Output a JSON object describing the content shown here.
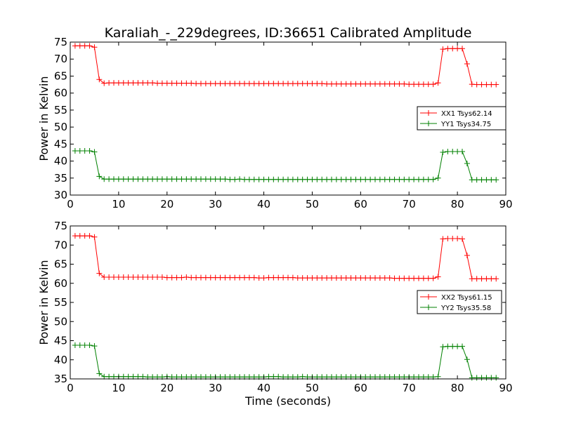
{
  "figure": {
    "title": "Karaliah_-_229degrees, ID:36651 Calibrated Amplitude",
    "xlabel": "Time (seconds)"
  },
  "chart_data": [
    {
      "type": "line",
      "ylabel": "Power in Kelvin",
      "xlabel": "",
      "xlim": [
        0,
        90
      ],
      "ylim": [
        30,
        75
      ],
      "xticks": [
        0,
        10,
        20,
        30,
        40,
        50,
        60,
        70,
        80,
        90
      ],
      "yticks": [
        30,
        35,
        40,
        45,
        50,
        55,
        60,
        65,
        70,
        75
      ],
      "grid": false,
      "legend_position": "center-right",
      "x": [
        1,
        2,
        3,
        4,
        5,
        6,
        7,
        8,
        9,
        10,
        11,
        12,
        13,
        14,
        15,
        16,
        17,
        18,
        19,
        20,
        21,
        22,
        23,
        24,
        25,
        26,
        27,
        28,
        29,
        30,
        31,
        32,
        33,
        34,
        35,
        36,
        37,
        38,
        39,
        40,
        41,
        42,
        43,
        44,
        45,
        46,
        47,
        48,
        49,
        50,
        51,
        52,
        53,
        54,
        55,
        56,
        57,
        58,
        59,
        60,
        61,
        62,
        63,
        64,
        65,
        66,
        67,
        68,
        69,
        70,
        71,
        72,
        73,
        74,
        75,
        76,
        77,
        78,
        79,
        80,
        81,
        82,
        83,
        84,
        85,
        86,
        87,
        88
      ],
      "series": [
        {
          "name": "XX1 Tsys62.14",
          "color": "#ff0000",
          "values": [
            73.9,
            73.9,
            73.9,
            73.9,
            73.5,
            64.0,
            62.9,
            63.0,
            63.0,
            63.0,
            63.0,
            63.0,
            63.0,
            63.0,
            63.0,
            63.0,
            63.0,
            62.9,
            62.9,
            62.9,
            62.9,
            62.9,
            62.9,
            62.9,
            62.9,
            62.8,
            62.8,
            62.8,
            62.8,
            62.8,
            62.8,
            62.8,
            62.8,
            62.8,
            62.8,
            62.8,
            62.8,
            62.8,
            62.8,
            62.8,
            62.8,
            62.8,
            62.8,
            62.8,
            62.8,
            62.8,
            62.8,
            62.8,
            62.8,
            62.8,
            62.8,
            62.8,
            62.7,
            62.7,
            62.7,
            62.7,
            62.7,
            62.7,
            62.7,
            62.7,
            62.7,
            62.7,
            62.7,
            62.7,
            62.7,
            62.7,
            62.7,
            62.7,
            62.7,
            62.6,
            62.6,
            62.6,
            62.6,
            62.6,
            62.6,
            63.0,
            72.9,
            73.1,
            73.1,
            73.1,
            73.1,
            68.6,
            62.6,
            62.5,
            62.5,
            62.5,
            62.5,
            62.5
          ]
        },
        {
          "name": "YY1 Tsys34.75",
          "color": "#008000",
          "values": [
            43.0,
            43.0,
            43.0,
            43.0,
            42.7,
            35.5,
            34.7,
            34.7,
            34.7,
            34.7,
            34.7,
            34.7,
            34.7,
            34.7,
            34.7,
            34.7,
            34.7,
            34.7,
            34.7,
            34.7,
            34.7,
            34.7,
            34.7,
            34.7,
            34.7,
            34.7,
            34.7,
            34.7,
            34.7,
            34.7,
            34.7,
            34.7,
            34.6,
            34.6,
            34.7,
            34.6,
            34.6,
            34.6,
            34.6,
            34.6,
            34.6,
            34.6,
            34.6,
            34.6,
            34.6,
            34.6,
            34.6,
            34.6,
            34.6,
            34.6,
            34.6,
            34.6,
            34.6,
            34.6,
            34.6,
            34.6,
            34.6,
            34.6,
            34.6,
            34.6,
            34.6,
            34.6,
            34.6,
            34.6,
            34.6,
            34.6,
            34.6,
            34.6,
            34.6,
            34.6,
            34.6,
            34.6,
            34.6,
            34.6,
            34.6,
            35.0,
            42.6,
            42.8,
            42.8,
            42.8,
            42.8,
            39.3,
            34.5,
            34.5,
            34.5,
            34.5,
            34.5,
            34.5
          ]
        }
      ]
    },
    {
      "type": "line",
      "ylabel": "Power in Kelvin",
      "xlabel": "Time (seconds)",
      "xlim": [
        0,
        90
      ],
      "ylim": [
        35,
        75
      ],
      "xticks": [
        0,
        10,
        20,
        30,
        40,
        50,
        60,
        70,
        80,
        90
      ],
      "yticks": [
        35,
        40,
        45,
        50,
        55,
        60,
        65,
        70,
        75
      ],
      "grid": false,
      "legend_position": "center-right",
      "x": [
        1,
        2,
        3,
        4,
        5,
        6,
        7,
        8,
        9,
        10,
        11,
        12,
        13,
        14,
        15,
        16,
        17,
        18,
        19,
        20,
        21,
        22,
        23,
        24,
        25,
        26,
        27,
        28,
        29,
        30,
        31,
        32,
        33,
        34,
        35,
        36,
        37,
        38,
        39,
        40,
        41,
        42,
        43,
        44,
        45,
        46,
        47,
        48,
        49,
        50,
        51,
        52,
        53,
        54,
        55,
        56,
        57,
        58,
        59,
        60,
        61,
        62,
        63,
        64,
        65,
        66,
        67,
        68,
        69,
        70,
        71,
        72,
        73,
        74,
        75,
        76,
        77,
        78,
        79,
        80,
        81,
        82,
        83,
        84,
        85,
        86,
        87,
        88
      ],
      "series": [
        {
          "name": "XX2 Tsys61.15",
          "color": "#ff0000",
          "values": [
            72.4,
            72.4,
            72.4,
            72.4,
            72.1,
            62.6,
            61.6,
            61.6,
            61.6,
            61.6,
            61.6,
            61.6,
            61.6,
            61.6,
            61.6,
            61.6,
            61.6,
            61.6,
            61.6,
            61.5,
            61.5,
            61.5,
            61.5,
            61.6,
            61.5,
            61.5,
            61.5,
            61.5,
            61.5,
            61.5,
            61.5,
            61.5,
            61.5,
            61.5,
            61.5,
            61.5,
            61.5,
            61.5,
            61.4,
            61.4,
            61.5,
            61.5,
            61.5,
            61.5,
            61.5,
            61.5,
            61.4,
            61.4,
            61.4,
            61.4,
            61.4,
            61.4,
            61.4,
            61.4,
            61.4,
            61.4,
            61.4,
            61.4,
            61.4,
            61.4,
            61.4,
            61.4,
            61.4,
            61.4,
            61.4,
            61.4,
            61.3,
            61.3,
            61.3,
            61.3,
            61.3,
            61.3,
            61.3,
            61.3,
            61.3,
            61.7,
            71.6,
            71.7,
            71.7,
            71.7,
            71.6,
            67.3,
            61.2,
            61.2,
            61.2,
            61.2,
            61.2,
            61.2
          ]
        },
        {
          "name": "YY2 Tsys35.58",
          "color": "#008000",
          "values": [
            43.8,
            43.8,
            43.8,
            43.8,
            43.6,
            36.4,
            35.6,
            35.6,
            35.6,
            35.6,
            35.6,
            35.6,
            35.6,
            35.6,
            35.6,
            35.5,
            35.5,
            35.5,
            35.5,
            35.6,
            35.5,
            35.5,
            35.5,
            35.5,
            35.5,
            35.5,
            35.5,
            35.5,
            35.5,
            35.5,
            35.5,
            35.5,
            35.5,
            35.5,
            35.5,
            35.5,
            35.5,
            35.5,
            35.5,
            35.5,
            35.6,
            35.6,
            35.6,
            35.5,
            35.5,
            35.5,
            35.5,
            35.6,
            35.5,
            35.5,
            35.5,
            35.5,
            35.5,
            35.5,
            35.5,
            35.5,
            35.5,
            35.5,
            35.5,
            35.5,
            35.5,
            35.5,
            35.5,
            35.5,
            35.5,
            35.5,
            35.5,
            35.5,
            35.5,
            35.5,
            35.5,
            35.5,
            35.5,
            35.5,
            35.5,
            35.6,
            43.4,
            43.5,
            43.5,
            43.5,
            43.5,
            40.1,
            35.3,
            35.3,
            35.3,
            35.3,
            35.3,
            35.3
          ]
        }
      ]
    }
  ]
}
